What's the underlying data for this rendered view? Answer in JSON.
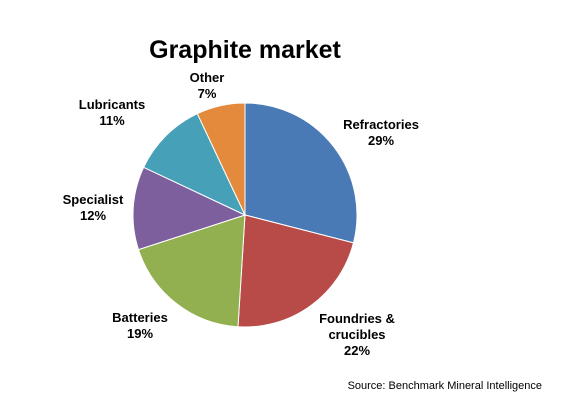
{
  "chart_data": {
    "type": "pie",
    "title": "Graphite market",
    "categories": [
      "Refractories",
      "Foundries & crucibles",
      "Batteries",
      "Specialist",
      "Lubricants",
      "Other"
    ],
    "values": [
      29,
      22,
      19,
      12,
      11,
      7
    ],
    "value_labels": [
      "29%",
      "22%",
      "19%",
      "12%",
      "11%",
      "7%"
    ],
    "colors": [
      "#4a7ab5",
      "#b84a47",
      "#92b050",
      "#7c5f9c",
      "#46a0b8",
      "#e38a3c"
    ],
    "source": "Source: Benchmark Mineral Intelligence"
  }
}
